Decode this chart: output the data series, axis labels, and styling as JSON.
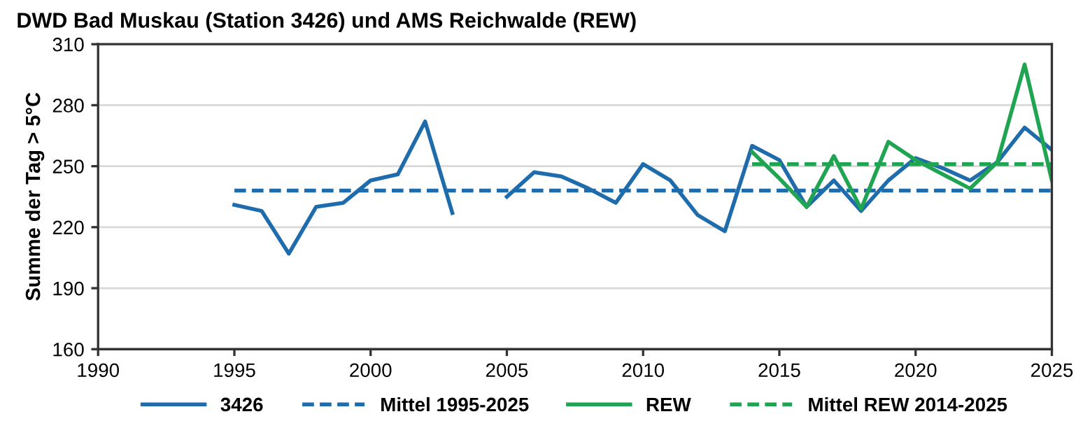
{
  "chart_data": {
    "type": "line",
    "title": "DWD Bad Muskau (Station 3426) und AMS Reichwalde (REW)",
    "ylabel": "Summe der Tag > 5°C",
    "xlim": [
      1990,
      2025
    ],
    "xticks": [
      1990,
      1995,
      2000,
      2005,
      2010,
      2015,
      2020,
      2025
    ],
    "ylim": [
      160,
      310
    ],
    "yticks": [
      160,
      190,
      220,
      250,
      280,
      310
    ],
    "grid": "y",
    "legend": "bottom",
    "series": [
      {
        "name": "3426",
        "color": "#1f6cad",
        "line_style": "solid",
        "x": [
          1995,
          1996,
          1997,
          1998,
          1999,
          2000,
          2001,
          2002,
          2003,
          2004,
          2005,
          2006,
          2007,
          2008,
          2009,
          2010,
          2011,
          2012,
          2013,
          2014,
          2015,
          2016,
          2017,
          2018,
          2019,
          2020,
          2021,
          2022,
          2023,
          2024,
          2025
        ],
        "values": [
          231,
          228,
          207,
          230,
          232,
          243,
          246,
          272,
          227,
          null,
          235,
          247,
          245,
          239,
          232,
          251,
          243,
          226,
          218,
          260,
          253,
          230,
          243,
          228,
          243,
          254,
          249,
          243,
          252,
          269,
          258
        ]
      },
      {
        "name": "Mittel 1995-2025",
        "color": "#1f6cad",
        "line_style": "dashed",
        "x": [
          1995,
          2025
        ],
        "values": [
          238,
          238
        ]
      },
      {
        "name": "REW",
        "color": "#1fa552",
        "line_style": "solid",
        "x": [
          2014,
          2015,
          2016,
          2017,
          2018,
          2019,
          2020,
          2021,
          2022,
          2023,
          2024,
          2025
        ],
        "values": [
          257,
          244,
          230,
          255,
          229,
          262,
          253,
          246,
          239,
          252,
          300,
          243
        ]
      },
      {
        "name": "Mittel REW 2014-2025",
        "color": "#1fa552",
        "line_style": "dashed",
        "x": [
          2014,
          2025
        ],
        "values": [
          251,
          251
        ]
      }
    ]
  }
}
